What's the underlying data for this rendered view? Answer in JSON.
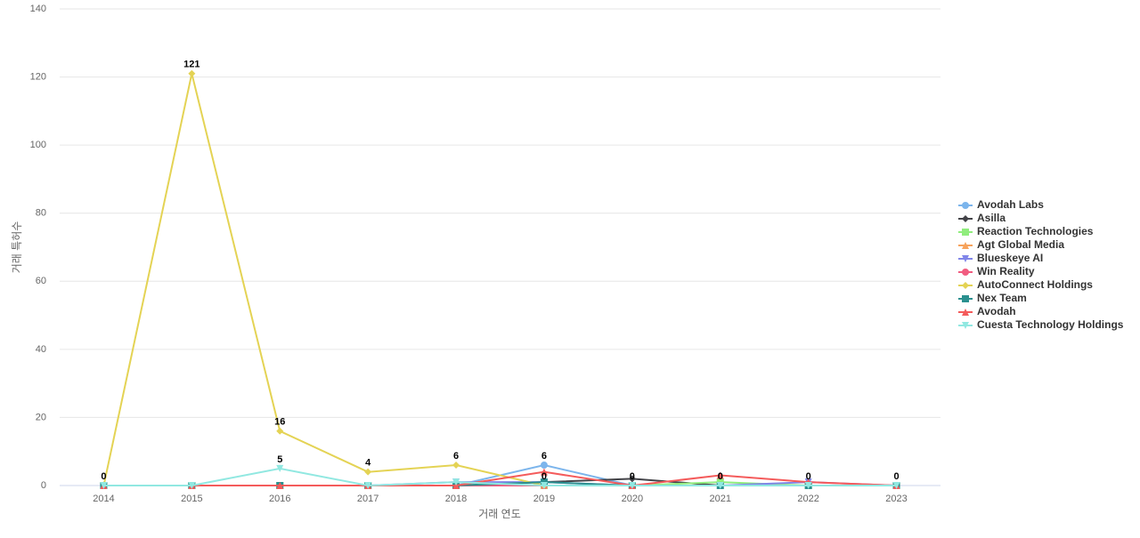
{
  "chart_data": {
    "type": "line",
    "x_label": "거래 연도",
    "y_label": "거래 특허수",
    "categories": [
      "2014",
      "2015",
      "2016",
      "2017",
      "2018",
      "2019",
      "2020",
      "2021",
      "2022",
      "2023"
    ],
    "ylim": [
      0,
      140
    ],
    "yticks": [
      0,
      20,
      40,
      60,
      80,
      100,
      120,
      140
    ],
    "grid": true,
    "legend": "right",
    "series": [
      {
        "name": "Avodah Labs",
        "color": "#7cb5ec",
        "marker": "circle",
        "values": [
          0,
          0,
          0,
          0,
          0,
          6,
          0,
          0,
          0,
          0
        ]
      },
      {
        "name": "Asilla",
        "color": "#434348",
        "marker": "diamond",
        "values": [
          0,
          0,
          0,
          0,
          0,
          1,
          2,
          0,
          0,
          0
        ]
      },
      {
        "name": "Reaction Technologies",
        "color": "#90ed7d",
        "marker": "square",
        "values": [
          0,
          0,
          0,
          0,
          0,
          0,
          0,
          1,
          0,
          0
        ]
      },
      {
        "name": "Agt Global Media",
        "color": "#f7a35c",
        "marker": "triangle",
        "values": [
          0,
          0,
          0,
          0,
          0,
          0,
          0,
          0,
          0,
          0
        ]
      },
      {
        "name": "Blueskeye AI",
        "color": "#8085e9",
        "marker": "triangle-down",
        "values": [
          0,
          0,
          0,
          0,
          1,
          1,
          0,
          0,
          1,
          0
        ]
      },
      {
        "name": "Win Reality",
        "color": "#f15c80",
        "marker": "circle",
        "values": [
          0,
          0,
          0,
          0,
          0,
          0,
          0,
          0,
          0,
          0
        ]
      },
      {
        "name": "AutoConnect Holdings",
        "color": "#e4d354",
        "marker": "diamond",
        "labeled": true,
        "values": [
          0,
          121,
          16,
          4,
          6,
          0,
          0,
          0,
          0,
          0
        ]
      },
      {
        "name": "Nex Team",
        "color": "#2b908f",
        "marker": "square",
        "values": [
          0,
          0,
          0,
          0,
          0,
          1,
          0,
          0,
          0,
          0
        ]
      },
      {
        "name": "Avodah",
        "color": "#f45b5b",
        "marker": "triangle",
        "values": [
          0,
          0,
          0,
          0,
          0,
          4,
          0,
          3,
          1,
          0
        ]
      },
      {
        "name": "Cuesta Technology Holdings",
        "color": "#91e8e1",
        "marker": "triangle-down",
        "values": [
          0,
          0,
          5,
          0,
          1,
          0,
          0,
          0,
          0,
          0
        ]
      }
    ]
  }
}
